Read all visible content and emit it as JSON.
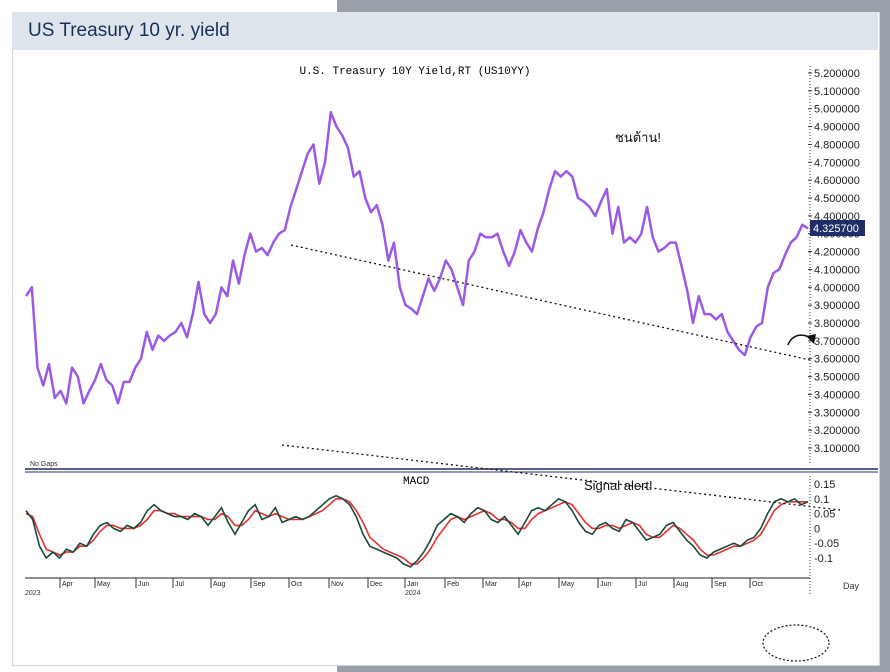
{
  "header": {
    "title": "US Treasury 10 yr. yield"
  },
  "chart_data": [
    {
      "type": "line",
      "title": "U.S. Treasury 10Y Yield,RT (US10YY)",
      "ylim": [
        3.0,
        5.25
      ],
      "yticks": [
        "5.200000",
        "5.100000",
        "5.000000",
        "4.900000",
        "4.800000",
        "4.700000",
        "4.600000",
        "4.500000",
        "4.400000",
        "4.300000",
        "4.200000",
        "4.100000",
        "4.000000",
        "3.900000",
        "3.800000",
        "3.700000",
        "3.600000",
        "3.500000",
        "3.400000",
        "3.300000",
        "3.200000",
        "3.100000"
      ],
      "last_value_label": "4.325700",
      "line_color": "#9b59e6",
      "annotations": [
        "ชนต้าน!",
        "No Gaps"
      ],
      "series": [
        {
          "x": [
            "2023-03-01",
            "2023-03-03",
            "2023-03-06",
            "2023-03-09",
            "2023-03-13",
            "2023-03-17",
            "2023-03-21",
            "2023-03-24",
            "2023-03-28",
            "2023-03-31",
            "2023-04-05",
            "2023-04-10",
            "2023-04-14",
            "2023-04-19",
            "2023-04-24",
            "2023-04-28",
            "2023-05-03",
            "2023-05-08",
            "2023-05-12",
            "2023-05-17",
            "2023-05-22",
            "2023-05-26",
            "2023-05-31",
            "2023-06-05",
            "2023-06-09",
            "2023-06-14",
            "2023-06-19",
            "2023-06-23",
            "2023-06-28",
            "2023-07-03",
            "2023-07-07",
            "2023-07-12",
            "2023-07-17",
            "2023-07-21",
            "2023-07-26",
            "2023-07-31",
            "2023-08-04",
            "2023-08-09",
            "2023-08-14",
            "2023-08-18",
            "2023-08-23",
            "2023-08-28",
            "2023-09-01",
            "2023-09-06",
            "2023-09-11",
            "2023-09-15",
            "2023-09-20",
            "2023-09-25",
            "2023-09-29",
            "2023-10-03",
            "2023-10-06",
            "2023-10-11",
            "2023-10-16",
            "2023-10-19",
            "2023-10-23",
            "2023-10-27",
            "2023-11-01",
            "2023-11-06",
            "2023-11-10",
            "2023-11-15",
            "2023-11-20",
            "2023-11-24",
            "2023-11-29",
            "2023-12-04",
            "2023-12-08",
            "2023-12-13",
            "2023-12-18",
            "2023-12-22",
            "2023-12-27",
            "2024-01-02",
            "2024-01-05",
            "2024-01-10",
            "2024-01-16",
            "2024-01-19",
            "2024-01-24",
            "2024-01-29",
            "2024-02-01",
            "2024-02-05",
            "2024-02-09",
            "2024-02-14",
            "2024-02-20",
            "2024-02-23",
            "2024-02-28",
            "2024-03-04",
            "2024-03-08",
            "2024-03-13",
            "2024-03-18",
            "2024-03-22",
            "2024-03-27",
            "2024-04-02",
            "2024-04-05",
            "2024-04-10",
            "2024-04-16",
            "2024-04-19",
            "2024-04-24",
            "2024-04-29",
            "2024-05-03",
            "2024-05-08",
            "2024-05-13",
            "2024-05-17",
            "2024-05-22",
            "2024-05-28",
            "2024-06-03",
            "2024-06-07",
            "2024-06-12",
            "2024-06-17",
            "2024-06-21",
            "2024-06-26",
            "2024-07-01",
            "2024-07-05",
            "2024-07-10",
            "2024-07-15",
            "2024-07-19",
            "2024-07-24",
            "2024-07-29",
            "2024-08-01",
            "2024-08-05",
            "2024-08-09",
            "2024-08-14",
            "2024-08-19",
            "2024-08-23",
            "2024-08-28",
            "2024-09-03",
            "2024-09-06",
            "2024-09-11",
            "2024-09-16",
            "2024-09-20",
            "2024-09-25",
            "2024-09-30",
            "2024-10-04",
            "2024-10-09",
            "2024-10-14",
            "2024-10-18",
            "2024-10-23",
            "2024-10-28",
            "2024-11-01",
            "2024-11-05"
          ],
          "values": [
            3.95,
            4.0,
            3.55,
            3.45,
            3.57,
            3.38,
            3.42,
            3.35,
            3.55,
            3.5,
            3.35,
            3.42,
            3.48,
            3.57,
            3.48,
            3.45,
            3.35,
            3.47,
            3.47,
            3.55,
            3.6,
            3.75,
            3.65,
            3.73,
            3.7,
            3.73,
            3.75,
            3.8,
            3.72,
            3.85,
            4.03,
            3.85,
            3.8,
            3.85,
            4.0,
            3.95,
            4.15,
            4.02,
            4.18,
            4.3,
            4.2,
            4.22,
            4.18,
            4.25,
            4.3,
            4.32,
            4.45,
            4.55,
            4.65,
            4.75,
            4.8,
            4.58,
            4.7,
            4.98,
            4.9,
            4.85,
            4.78,
            4.62,
            4.65,
            4.5,
            4.42,
            4.46,
            4.35,
            4.15,
            4.25,
            4.0,
            3.9,
            3.88,
            3.85,
            3.95,
            4.05,
            3.98,
            4.05,
            4.15,
            4.1,
            4.0,
            3.9,
            4.15,
            4.2,
            4.3,
            4.28,
            4.28,
            4.3,
            4.2,
            4.12,
            4.2,
            4.32,
            4.25,
            4.2,
            4.33,
            4.42,
            4.55,
            4.65,
            4.62,
            4.65,
            4.62,
            4.5,
            4.48,
            4.45,
            4.4,
            4.48,
            4.55,
            4.3,
            4.45,
            4.25,
            4.28,
            4.25,
            4.3,
            4.45,
            4.28,
            4.2,
            4.22,
            4.25,
            4.25,
            4.12,
            3.98,
            3.8,
            3.95,
            3.85,
            3.85,
            3.82,
            3.85,
            3.75,
            3.7,
            3.65,
            3.62,
            3.72,
            3.78,
            3.8,
            4.0,
            4.08,
            4.1,
            4.18,
            4.25,
            4.28,
            4.35,
            4.33
          ]
        }
      ]
    },
    {
      "type": "line",
      "title": "MACD",
      "ylim": [
        -0.16,
        0.17
      ],
      "yticks": [
        "0.15",
        "0.1",
        "0.05",
        "0",
        "-0.05",
        "-0.1"
      ],
      "annotations": [
        "Signal alert!"
      ],
      "x_month_labels": [
        "Apr",
        "May",
        "Jun",
        "Jul",
        "Aug",
        "Sep",
        "Oct",
        "Nov",
        "Dec",
        "Jan",
        "Feb",
        "Mar",
        "Apr",
        "May",
        "Jun",
        "Jul",
        "Aug",
        "Sep",
        "Oct"
      ],
      "x_year_labels": [
        "2023",
        "2024"
      ],
      "x_axis_right_label": "Day",
      "series": [
        {
          "color": "#1a4a3a",
          "values": [
            0.06,
            0.03,
            -0.06,
            -0.1,
            -0.08,
            -0.1,
            -0.07,
            -0.08,
            -0.05,
            -0.06,
            -0.02,
            0.01,
            0.02,
            0.0,
            -0.01,
            0.01,
            0.0,
            0.02,
            0.06,
            0.08,
            0.06,
            0.05,
            0.04,
            0.04,
            0.03,
            0.05,
            0.04,
            0.01,
            0.04,
            0.07,
            0.02,
            -0.02,
            0.02,
            0.06,
            0.08,
            0.03,
            0.04,
            0.07,
            0.02,
            0.03,
            0.04,
            0.03,
            0.04,
            0.06,
            0.08,
            0.1,
            0.11,
            0.1,
            0.08,
            0.04,
            -0.02,
            -0.06,
            -0.07,
            -0.08,
            -0.09,
            -0.1,
            -0.12,
            -0.13,
            -0.11,
            -0.08,
            -0.04,
            0.01,
            0.03,
            0.05,
            0.04,
            0.02,
            0.05,
            0.07,
            0.06,
            0.03,
            0.02,
            0.04,
            0.01,
            -0.02,
            0.02,
            0.06,
            0.07,
            0.06,
            0.08,
            0.1,
            0.09,
            0.06,
            0.02,
            -0.01,
            -0.02,
            0.01,
            0.02,
            0.0,
            -0.01,
            0.03,
            0.02,
            -0.01,
            -0.04,
            -0.03,
            -0.02,
            0.01,
            0.02,
            -0.01,
            -0.04,
            -0.06,
            -0.09,
            -0.1,
            -0.08,
            -0.07,
            -0.06,
            -0.05,
            -0.06,
            -0.04,
            -0.03,
            0.0,
            0.05,
            0.09,
            0.1,
            0.09,
            0.1,
            0.08,
            0.09
          ]
        },
        {
          "color": "#e03030",
          "values": [
            0.05,
            0.04,
            -0.02,
            -0.07,
            -0.08,
            -0.09,
            -0.08,
            -0.08,
            -0.06,
            -0.06,
            -0.04,
            -0.01,
            0.01,
            0.01,
            0.0,
            0.0,
            0.0,
            0.01,
            0.03,
            0.06,
            0.06,
            0.05,
            0.05,
            0.04,
            0.04,
            0.04,
            0.04,
            0.03,
            0.03,
            0.05,
            0.04,
            0.01,
            0.01,
            0.03,
            0.06,
            0.05,
            0.04,
            0.05,
            0.04,
            0.03,
            0.03,
            0.03,
            0.04,
            0.05,
            0.06,
            0.08,
            0.1,
            0.1,
            0.09,
            0.06,
            0.02,
            -0.03,
            -0.05,
            -0.07,
            -0.08,
            -0.09,
            -0.1,
            -0.12,
            -0.12,
            -0.1,
            -0.07,
            -0.03,
            0.0,
            0.03,
            0.04,
            0.03,
            0.04,
            0.05,
            0.06,
            0.05,
            0.03,
            0.03,
            0.02,
            0.0,
            0.0,
            0.03,
            0.05,
            0.06,
            0.07,
            0.08,
            0.09,
            0.08,
            0.05,
            0.02,
            0.0,
            0.0,
            0.01,
            0.01,
            0.0,
            0.01,
            0.02,
            0.01,
            -0.02,
            -0.03,
            -0.03,
            -0.01,
            0.01,
            0.0,
            -0.02,
            -0.04,
            -0.07,
            -0.09,
            -0.09,
            -0.08,
            -0.07,
            -0.06,
            -0.06,
            -0.05,
            -0.04,
            -0.02,
            0.02,
            0.06,
            0.08,
            0.09,
            0.09,
            0.09,
            0.09
          ]
        }
      ]
    }
  ]
}
